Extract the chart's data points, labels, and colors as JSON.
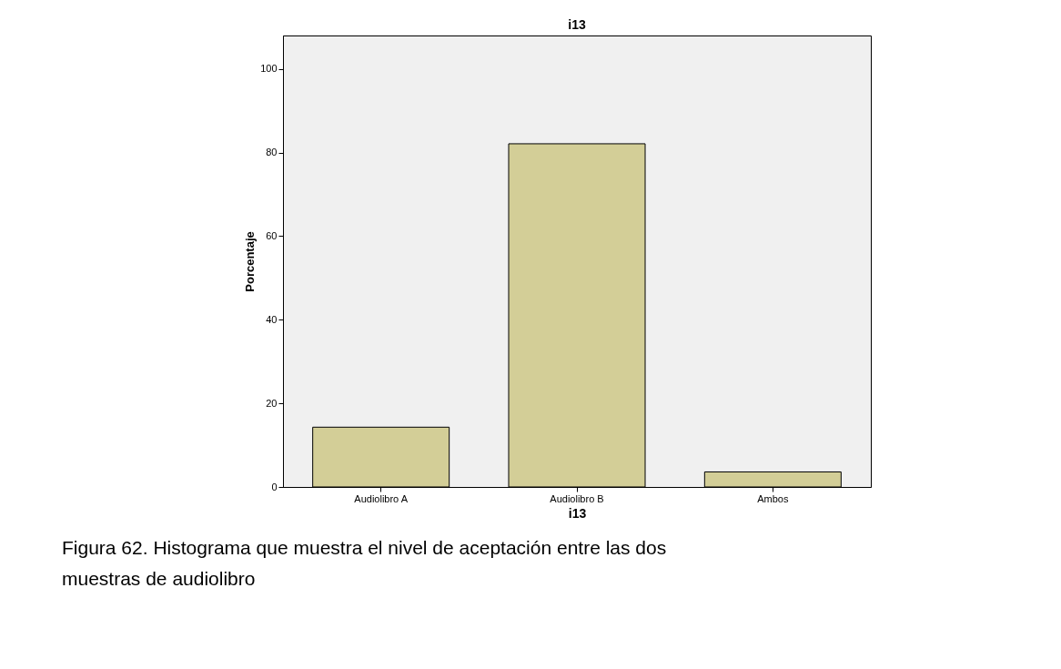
{
  "chart_data": {
    "type": "bar",
    "title": "i13",
    "xlabel": "i13",
    "ylabel": "Porcentaje",
    "categories": [
      "Audiolibro A",
      "Audiolibro B",
      "Ambos"
    ],
    "values": [
      14.3,
      82.1,
      3.6
    ],
    "color": "#d3ce97",
    "ylim": [
      0,
      108
    ],
    "yticks": [
      0,
      20,
      40,
      60,
      80,
      100
    ],
    "grid": false,
    "annotations": [
      "Figura 62. Histograma que muestra el nivel de aceptación entre las dos muestras de audiolibro"
    ]
  }
}
